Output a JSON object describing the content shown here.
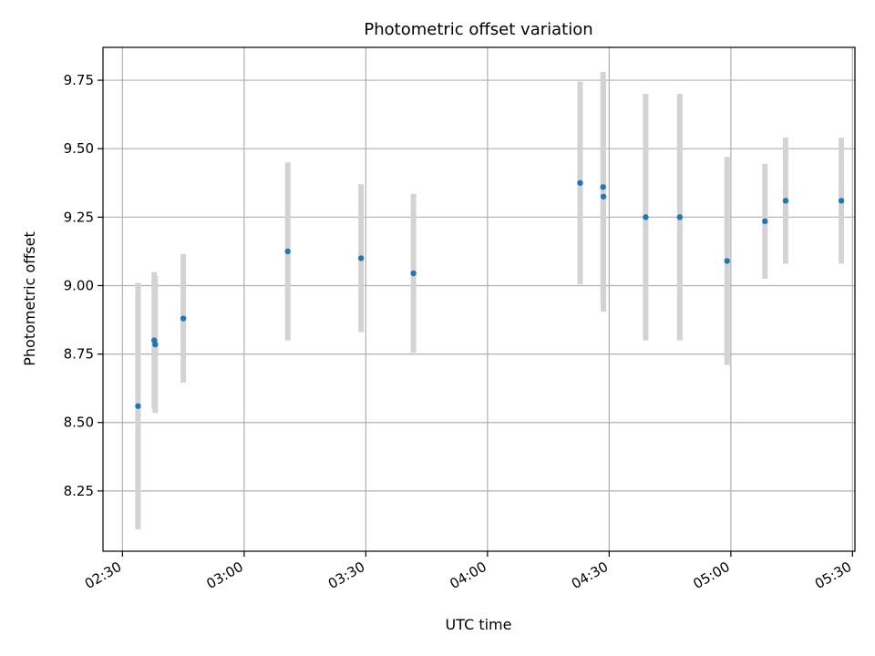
{
  "chart_data": {
    "type": "scatter",
    "title": "Photometric offset variation",
    "xlabel": "UTC time",
    "ylabel": "Photometric offset",
    "x_ticks": [
      "02:30",
      "03:00",
      "03:30",
      "04:00",
      "04:30",
      "05:00",
      "05:30"
    ],
    "x_tick_minutes": [
      150,
      180,
      210,
      240,
      270,
      300,
      330
    ],
    "y_ticks": [
      "8.25",
      "8.50",
      "8.75",
      "9.00",
      "9.25",
      "9.50",
      "9.75"
    ],
    "y_tick_values": [
      8.25,
      8.5,
      8.75,
      9.0,
      9.25,
      9.5,
      9.75
    ],
    "xlim_minutes": [
      145.2,
      330.6
    ],
    "ylim": [
      8.03,
      9.87
    ],
    "grid": true,
    "point_color": "#1f77b4",
    "errorbar_color": "#d3d3d3",
    "points": [
      {
        "t": "02:33:50",
        "y": 8.56,
        "err": 0.45
      },
      {
        "t": "02:37:50",
        "y": 8.8,
        "err": 0.25
      },
      {
        "t": "02:38:05",
        "y": 8.785,
        "err": 0.25
      },
      {
        "t": "02:45:00",
        "y": 8.88,
        "err": 0.235
      },
      {
        "t": "03:10:45",
        "y": 9.125,
        "err": 0.325
      },
      {
        "t": "03:28:50",
        "y": 9.1,
        "err": 0.27
      },
      {
        "t": "03:41:45",
        "y": 9.045,
        "err": 0.29
      },
      {
        "t": "04:22:50",
        "y": 9.375,
        "err": 0.37
      },
      {
        "t": "04:28:30",
        "y": 9.36,
        "err": 0.42
      },
      {
        "t": "04:28:35",
        "y": 9.325,
        "err": 0.42
      },
      {
        "t": "04:39:00",
        "y": 9.25,
        "err": 0.45
      },
      {
        "t": "04:47:25",
        "y": 9.25,
        "err": 0.45
      },
      {
        "t": "04:59:05",
        "y": 9.09,
        "err": 0.38
      },
      {
        "t": "05:08:25",
        "y": 9.235,
        "err": 0.21
      },
      {
        "t": "05:13:30",
        "y": 9.31,
        "err": 0.23
      },
      {
        "t": "05:27:15",
        "y": 9.31,
        "err": 0.23
      }
    ]
  }
}
